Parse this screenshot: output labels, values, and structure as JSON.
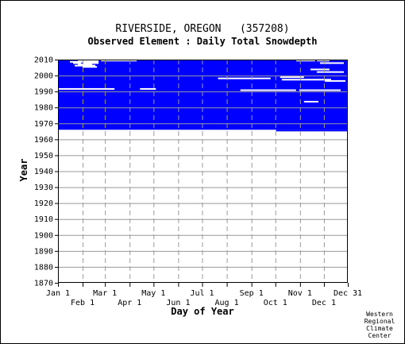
{
  "chart_data": {
    "type": "heatmap",
    "title": "RIVERSIDE, OREGON   (357208)",
    "subtitle": "Observed Element : Daily Total Snowdepth",
    "xlabel": "Day of Year",
    "ylabel": "Year",
    "xlim": [
      1,
      365
    ],
    "ylim": [
      1870,
      2010
    ],
    "y_ticks": [
      1870,
      1880,
      1890,
      1900,
      1910,
      1920,
      1930,
      1940,
      1950,
      1960,
      1970,
      1980,
      1990,
      2000,
      2010
    ],
    "x_ticks_top": [
      {
        "label": "Jan 1",
        "day": 1
      },
      {
        "label": "Mar 1",
        "day": 60
      },
      {
        "label": "May 1",
        "day": 121
      },
      {
        "label": "Jul 1",
        "day": 182
      },
      {
        "label": "Sep 1",
        "day": 244
      },
      {
        "label": "Nov 1",
        "day": 305
      },
      {
        "label": "Dec 31",
        "day": 365
      }
    ],
    "x_ticks_bottom": [
      {
        "label": "Feb 1",
        "day": 32
      },
      {
        "label": "Apr 1",
        "day": 91
      },
      {
        "label": "Jun 1",
        "day": 152
      },
      {
        "label": "Aug 1",
        "day": 213
      },
      {
        "label": "Oct 1",
        "day": 274
      },
      {
        "label": "Dec 1",
        "day": 335
      }
    ],
    "grid": true,
    "data_color": "#0000ff",
    "grid_color": "#999999",
    "observed_period": {
      "start_year": 1966,
      "end_year": 2010,
      "day_start": 1,
      "day_end": 365,
      "tail_start_day": 275,
      "tail_end_year": 2009
    },
    "gaps": [
      {
        "year": 2009.4,
        "day_start": 26,
        "day_end": 52
      },
      {
        "year": 2009.4,
        "day_start": 55,
        "day_end": 100
      },
      {
        "year": 2008.6,
        "day_start": 16,
        "day_end": 52
      },
      {
        "year": 2007.8,
        "day_start": 20,
        "day_end": 30
      },
      {
        "year": 2007.8,
        "day_start": 32,
        "day_end": 52
      },
      {
        "year": 2007.0,
        "day_start": 26,
        "day_end": 44
      },
      {
        "year": 2006.2,
        "day_start": 22,
        "day_end": 48
      },
      {
        "year": 2005.4,
        "day_start": 32,
        "day_end": 50
      },
      {
        "year": 2009.4,
        "day_start": 300,
        "day_end": 324
      },
      {
        "year": 2009.4,
        "day_start": 326,
        "day_end": 342
      },
      {
        "year": 2007.8,
        "day_start": 330,
        "day_end": 360
      },
      {
        "year": 2003.8,
        "day_start": 318,
        "day_end": 342
      },
      {
        "year": 2002.2,
        "day_start": 326,
        "day_end": 360
      },
      {
        "year": 1999.0,
        "day_start": 280,
        "day_end": 310
      },
      {
        "year": 1998.2,
        "day_start": 202,
        "day_end": 268
      },
      {
        "year": 1997.4,
        "day_start": 282,
        "day_end": 344
      },
      {
        "year": 1996.6,
        "day_start": 336,
        "day_end": 362
      },
      {
        "year": 1991.6,
        "day_start": 1,
        "day_end": 72
      },
      {
        "year": 1991.6,
        "day_start": 104,
        "day_end": 124
      },
      {
        "year": 1990.8,
        "day_start": 230,
        "day_end": 300
      },
      {
        "year": 1990.8,
        "day_start": 304,
        "day_end": 356
      },
      {
        "year": 1983.6,
        "day_start": 310,
        "day_end": 328
      }
    ]
  },
  "credit": {
    "line1": "Western",
    "line2": "Regional",
    "line3": "Climate",
    "line4": "Center"
  }
}
